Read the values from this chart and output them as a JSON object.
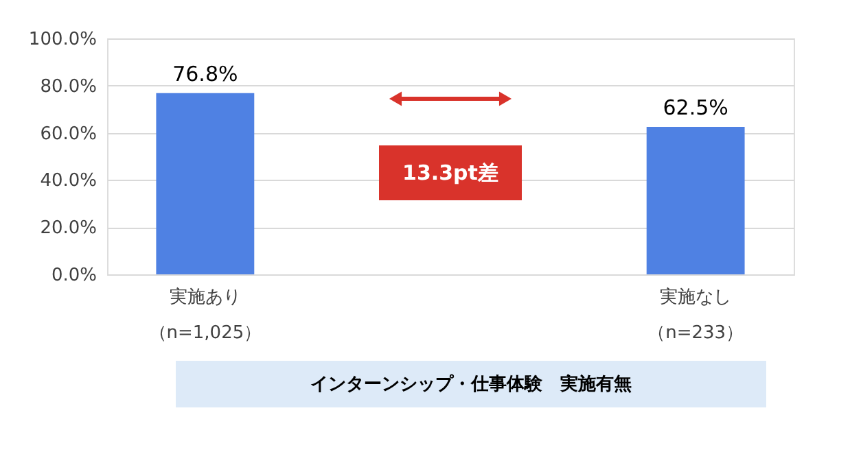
{
  "chart_data": {
    "type": "bar",
    "categories": [
      "実施あり（n=1,025）",
      "実施なし（n=233）"
    ],
    "values": [
      76.8,
      62.5
    ],
    "value_labels": [
      "76.8%",
      "62.5%"
    ],
    "color": "#4f81e3",
    "ylim": [
      0,
      100
    ],
    "yticks": [
      {
        "value": 0,
        "label": "0.0%"
      },
      {
        "value": 20,
        "label": "20.0%"
      },
      {
        "value": 40,
        "label": "40.0%"
      },
      {
        "value": 60,
        "label": "60.0%"
      },
      {
        "value": 80,
        "label": "80.0%"
      },
      {
        "value": 100,
        "label": "100.0%"
      }
    ],
    "grid": "y",
    "xlabel": "インターンシップ・仕事体験　実施有無",
    "annotations": [
      "13.3pt差"
    ]
  }
}
